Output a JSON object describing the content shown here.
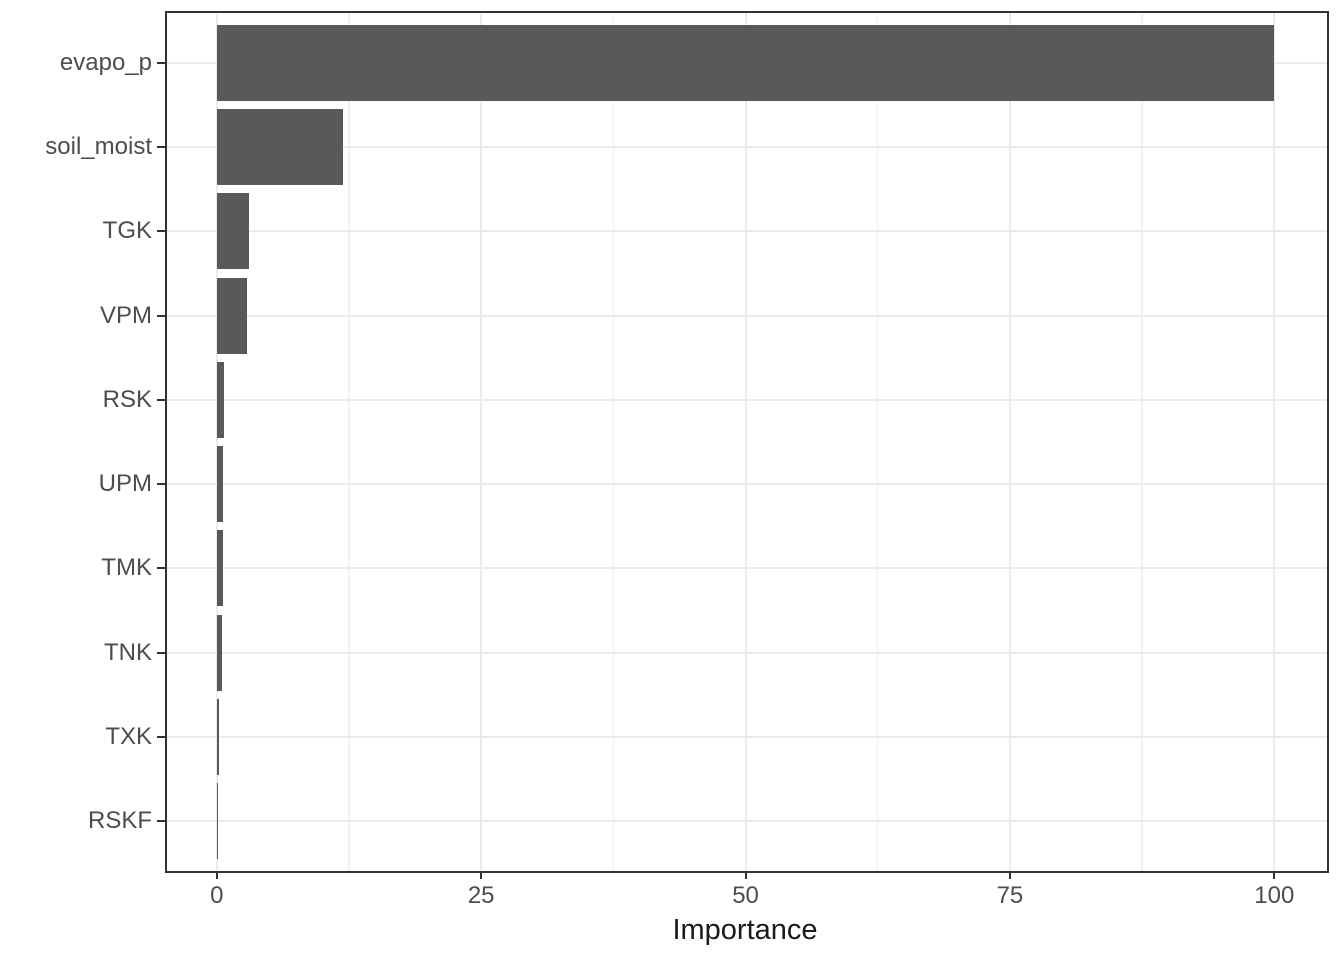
{
  "chart_data": {
    "type": "bar",
    "orientation": "horizontal",
    "title": "",
    "xlabel": "Importance",
    "ylabel": "",
    "categories": [
      "evapo_p",
      "soil_moist",
      "TGK",
      "VPM",
      "RSK",
      "UPM",
      "TMK",
      "TNK",
      "TXK",
      "RSKF"
    ],
    "values": [
      100,
      11.9,
      3.0,
      2.9,
      0.7,
      0.6,
      0.55,
      0.5,
      0.2,
      0.15
    ],
    "xlim": [
      0,
      100
    ],
    "x_major_ticks": [
      0,
      25,
      50,
      75,
      100
    ],
    "x_tick_labels": [
      "0",
      "25",
      "50",
      "75",
      "100"
    ],
    "x_minor_gridlines": [
      12.5,
      37.5,
      62.5,
      87.5
    ],
    "grid": "vertical major and minor gridlines, horizontal major gridlines at category centers",
    "legend_position": "none",
    "colors": {
      "bar_fill": "#595959",
      "panel_border": "#333333",
      "grid_major": "#ebebeb",
      "grid_minor": "#f1f1f1",
      "tick_mark": "#333333",
      "axis_text": "#4d4d4d",
      "axis_title": "#1a1a1a",
      "background": "#ffffff"
    }
  }
}
